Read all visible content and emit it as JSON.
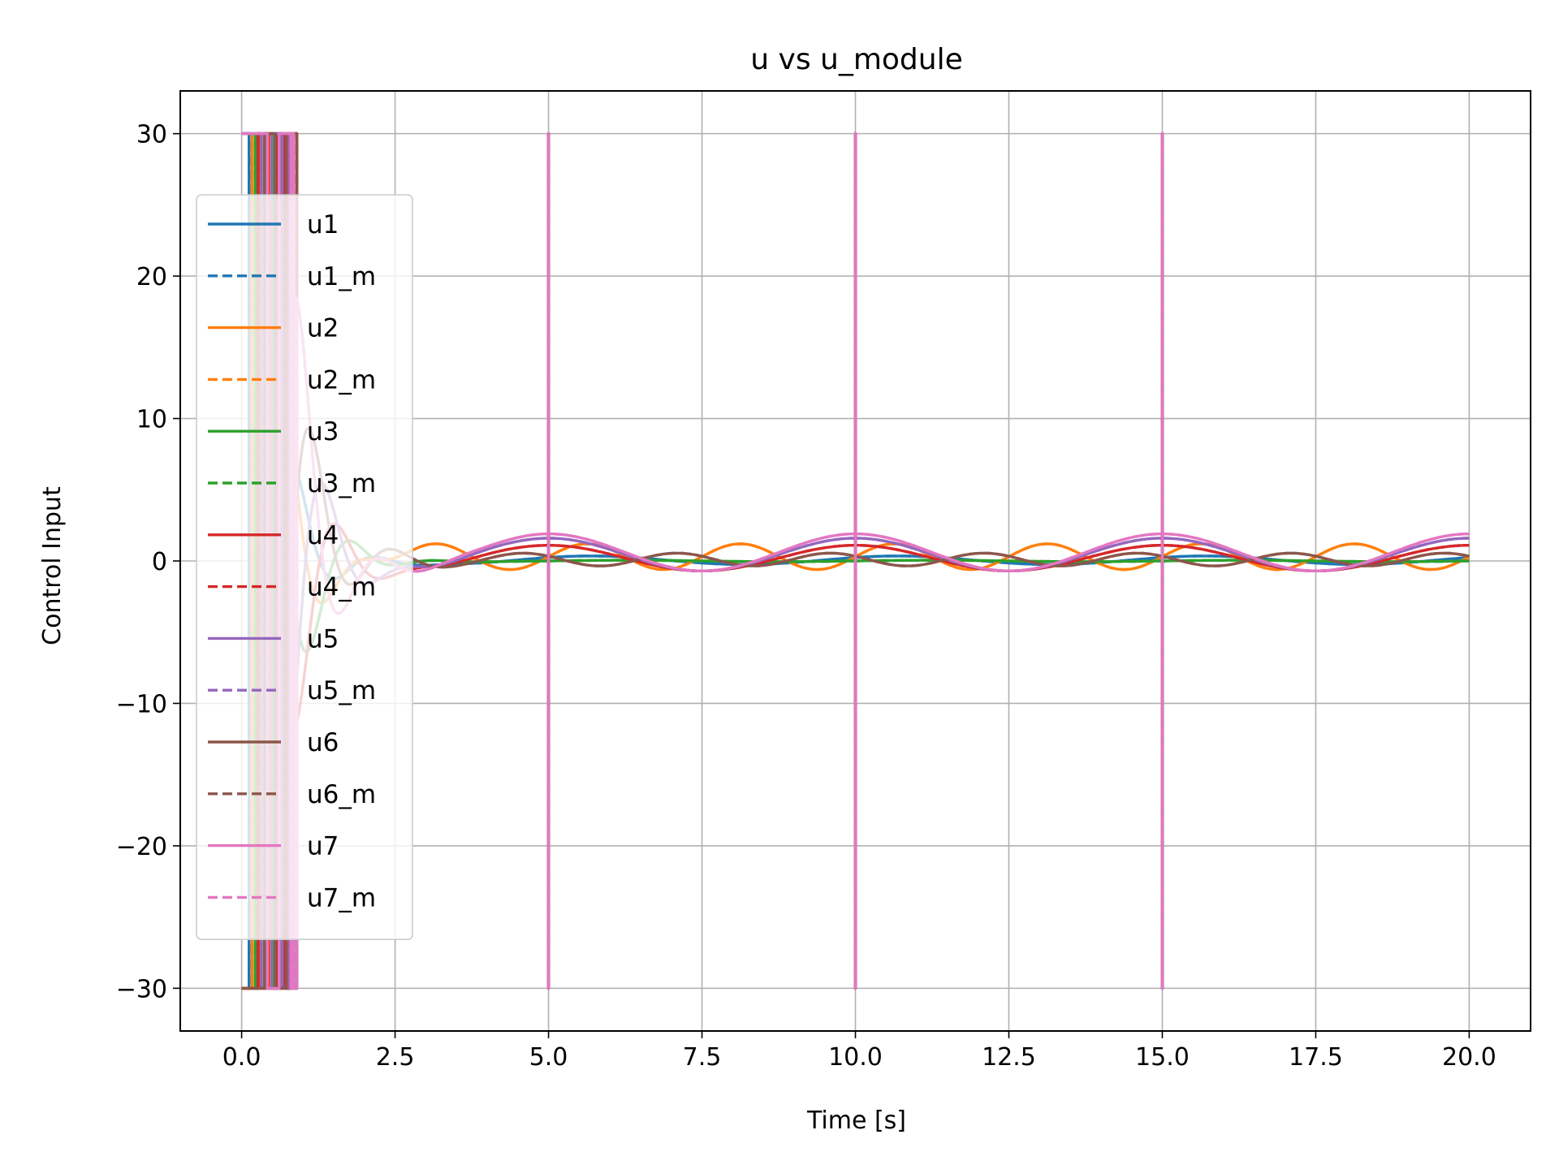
{
  "chart_data": {
    "type": "line",
    "title": "u vs u_module",
    "xlabel": "Time [s]",
    "ylabel": "Control Input",
    "xlim": [
      -1.0,
      21.0
    ],
    "ylim": [
      -33.0,
      33.0
    ],
    "xticks": [
      0.0,
      2.5,
      5.0,
      7.5,
      10.0,
      12.5,
      15.0,
      17.5,
      20.0
    ],
    "xtick_labels": [
      "0.0",
      "2.5",
      "5.0",
      "7.5",
      "10.0",
      "12.5",
      "15.0",
      "17.5",
      "20.0"
    ],
    "yticks": [
      -30,
      -20,
      -10,
      0,
      10,
      20,
      30
    ],
    "ytick_labels": [
      "−30",
      "−20",
      "−10",
      "0",
      "10",
      "20",
      "30"
    ],
    "grid": true,
    "legend_position": "upper-left",
    "saturation_limits": [
      -30,
      30
    ],
    "spike_times": [
      5.0,
      10.0,
      15.0
    ],
    "series": [
      {
        "name": "u1",
        "color": "#1f77b4",
        "style": "solid",
        "bias": 0.05,
        "amplitude": 0.3,
        "period": 5.0,
        "phase": 0.7
      },
      {
        "name": "u1_m",
        "color": "#1f77b4",
        "style": "dashed",
        "bias": 0.05,
        "amplitude": 0.3,
        "period": 5.0,
        "phase": 0.7
      },
      {
        "name": "u2",
        "color": "#ff7f0e",
        "style": "solid",
        "bias": 0.3,
        "amplitude": 0.9,
        "period": 2.5,
        "phase": 0.0
      },
      {
        "name": "u2_m",
        "color": "#ff7f0e",
        "style": "dashed",
        "bias": 0.3,
        "amplitude": 0.9,
        "period": 2.5,
        "phase": 0.0
      },
      {
        "name": "u3",
        "color": "#2ca02c",
        "style": "solid",
        "bias": 0.0,
        "amplitude": 0.05,
        "period": 5.0,
        "phase": 0.0
      },
      {
        "name": "u3_m",
        "color": "#2ca02c",
        "style": "dashed",
        "bias": 0.0,
        "amplitude": 0.05,
        "period": 5.0,
        "phase": 0.0
      },
      {
        "name": "u4",
        "color": "#d62728",
        "style": "solid",
        "bias": 0.2,
        "amplitude": 0.9,
        "period": 5.0,
        "phase": 1.57
      },
      {
        "name": "u4_m",
        "color": "#d62728",
        "style": "dashed",
        "bias": 0.2,
        "amplitude": 0.9,
        "period": 5.0,
        "phase": 1.57
      },
      {
        "name": "u5",
        "color": "#9467bd",
        "style": "solid",
        "bias": 0.45,
        "amplitude": 1.15,
        "period": 5.0,
        "phase": 1.57
      },
      {
        "name": "u5_m",
        "color": "#9467bd",
        "style": "dashed",
        "bias": 0.45,
        "amplitude": 1.15,
        "period": 5.0,
        "phase": 1.57
      },
      {
        "name": "u6",
        "color": "#8c564b",
        "style": "solid",
        "bias": 0.1,
        "amplitude": 0.45,
        "period": 2.5,
        "phase": 2.6
      },
      {
        "name": "u6_m",
        "color": "#8c564b",
        "style": "dashed",
        "bias": 0.1,
        "amplitude": 0.45,
        "period": 2.5,
        "phase": 2.6
      },
      {
        "name": "u7",
        "color": "#e377c2",
        "style": "solid",
        "bias": 0.6,
        "amplitude": 1.3,
        "period": 5.0,
        "phase": 1.57
      },
      {
        "name": "u7_m",
        "color": "#e377c2",
        "style": "dashed",
        "bias": 0.6,
        "amplitude": 1.3,
        "period": 5.0,
        "phase": 1.57
      }
    ]
  }
}
